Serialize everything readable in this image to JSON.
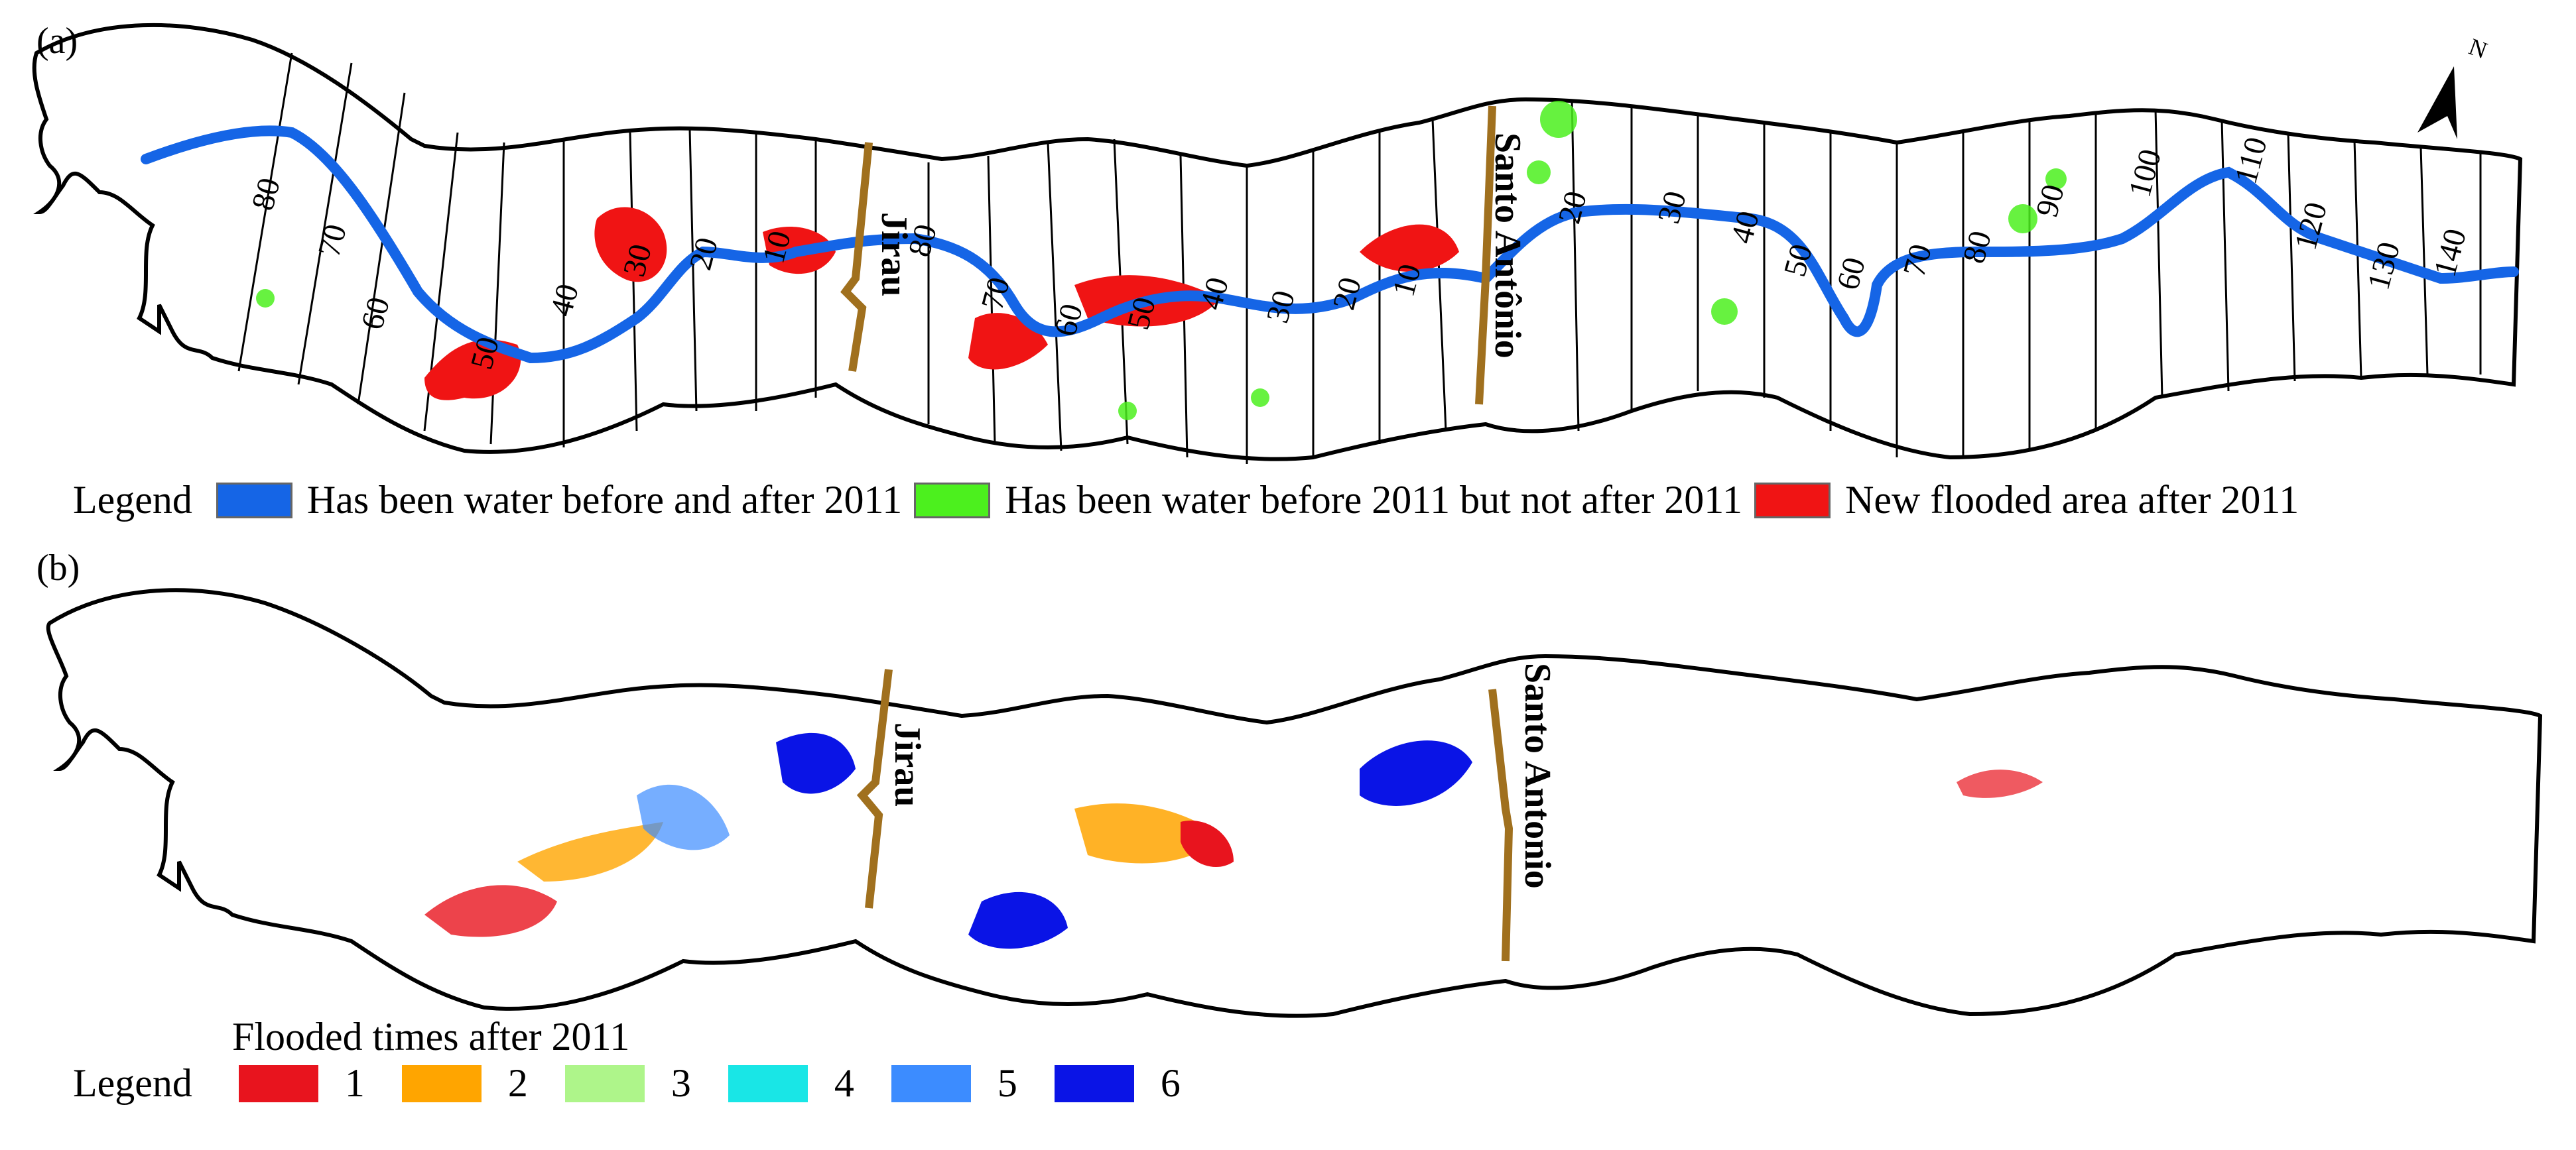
{
  "panel_a": {
    "label": "(a)",
    "north_label": "N",
    "dam_labels": [
      "Jirau",
      "Santo Antônio"
    ],
    "km_labels_upstream": [
      "80",
      "70",
      "60",
      "50",
      "40",
      "30",
      "20",
      "10"
    ],
    "km_labels_middle": [
      "80",
      "70",
      "60",
      "50",
      "40",
      "30",
      "20",
      "10"
    ],
    "km_labels_downstream": [
      "20",
      "30",
      "40",
      "50",
      "60",
      "70",
      "80",
      "90",
      "100",
      "110",
      "120",
      "130",
      "140"
    ],
    "legend": {
      "title": "Legend",
      "items": [
        {
          "label": "Has been water before and after 2011",
          "color": "#1565e6"
        },
        {
          "label": "Has been water before 2011 but not after 2011",
          "color": "#4cf01e"
        },
        {
          "label": "New flooded area after 2011",
          "color": "#f01414"
        }
      ]
    }
  },
  "panel_b": {
    "label": "(b)",
    "dam_labels": [
      "Jirau",
      "Santo Antonio"
    ],
    "legend": {
      "title": "Legend",
      "subtitle": "Flooded times after 2011",
      "items": [
        {
          "label": "1",
          "color": "#e8141e"
        },
        {
          "label": "2",
          "color": "#ffa500"
        },
        {
          "label": "3",
          "color": "#aef58a"
        },
        {
          "label": "4",
          "color": "#19e6e6"
        },
        {
          "label": "5",
          "color": "#3c8cff"
        },
        {
          "label": "6",
          "color": "#0a14e6"
        }
      ]
    }
  },
  "colors": {
    "outline": "#000000",
    "dam": "#a0701e",
    "river": "#1565e6"
  }
}
